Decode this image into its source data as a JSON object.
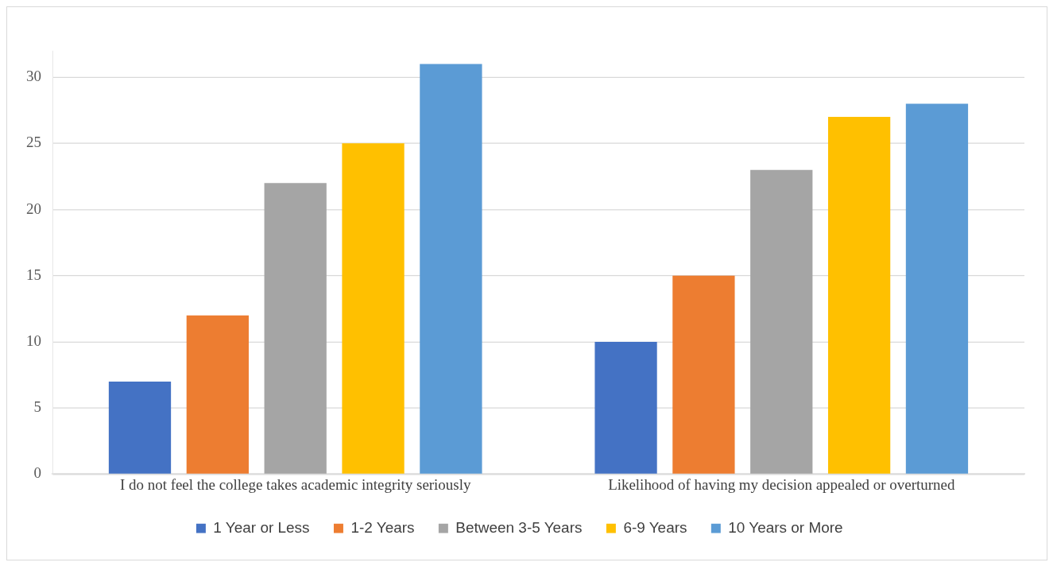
{
  "chart_data": {
    "type": "bar",
    "categories": [
      "I do not feel the college takes academic integrity seriously",
      "Likelihood of having my decision appealed or overturned"
    ],
    "series": [
      {
        "name": "1 Year or Less",
        "color": "#4472c4",
        "values": [
          7,
          10
        ]
      },
      {
        "name": "1-2 Years",
        "color": "#ed7d31",
        "values": [
          12,
          15
        ]
      },
      {
        "name": "Between 3-5 Years",
        "color": "#a5a5a5",
        "values": [
          22,
          23
        ]
      },
      {
        "name": "6-9 Years",
        "color": "#ffc000",
        "values": [
          25,
          27
        ]
      },
      {
        "name": "10 Years or More",
        "color": "#5b9bd5",
        "values": [
          31,
          28
        ]
      }
    ],
    "ylim": [
      0,
      32
    ],
    "yticks": [
      0,
      5,
      10,
      15,
      20,
      25,
      30
    ],
    "grid": "y",
    "legend": "bottom"
  }
}
